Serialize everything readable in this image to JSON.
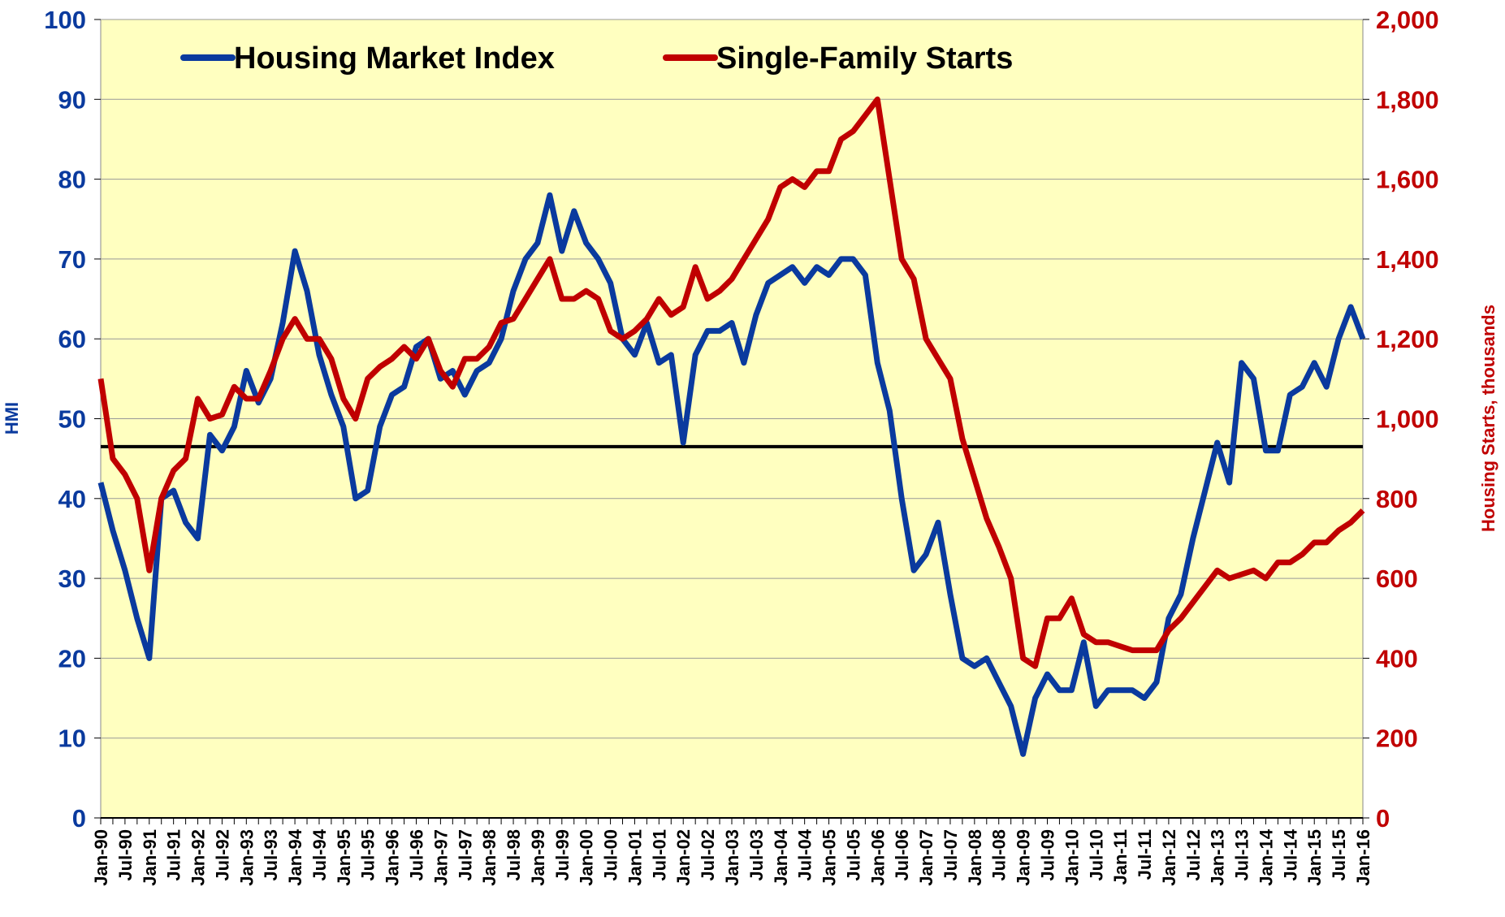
{
  "chart_data": {
    "type": "line",
    "y_label": "HMI",
    "y2_label": "Housing Starts, thousands",
    "categories": [
      "Jan-90",
      null,
      "Jul-90",
      null,
      "Jan-91",
      null,
      "Jul-91",
      null,
      "Jan-92",
      null,
      "Jul-92",
      null,
      "Jan-93",
      null,
      "Jul-93",
      null,
      "Jan-94",
      null,
      "Jul-94",
      null,
      "Jan-95",
      null,
      "Jul-95",
      null,
      "Jan-96",
      null,
      "Jul-96",
      null,
      "Jan-97",
      null,
      "Jul-97",
      null,
      "Jan-98",
      null,
      "Jul-98",
      null,
      "Jan-99",
      null,
      "Jul-99",
      null,
      "Jan-00",
      null,
      "Jul-00",
      null,
      "Jan-01",
      null,
      "Jul-01",
      null,
      "Jan-02",
      null,
      "Jul-02",
      null,
      "Jan-03",
      null,
      "Jul-03",
      null,
      "Jan-04",
      null,
      "Jul-04",
      null,
      "Jan-05",
      null,
      "Jul-05",
      null,
      "Jan-06",
      null,
      "Jul-06",
      null,
      "Jan-07",
      null,
      "Jul-07",
      null,
      "Jan-08",
      null,
      "Jul-08",
      null,
      "Jan-09",
      null,
      "Jul-09",
      null,
      "Jan-10",
      null,
      "Jul-10",
      null,
      "Jan-11",
      null,
      "Jul-11",
      null,
      "Jan-12",
      null,
      "Jul-12",
      null,
      "Jan-13",
      null,
      "Jul-13",
      null,
      "Jan-14",
      null,
      "Jul-14",
      null,
      "Jan-15",
      null,
      "Jul-15",
      null,
      "Jan-16"
    ],
    "series": [
      {
        "name": "Housing Market Index",
        "color": "#0a3a9e",
        "values": [
          42,
          36,
          31,
          25,
          20,
          40,
          41,
          37,
          35,
          48,
          46,
          49,
          56,
          52,
          55,
          62,
          71,
          66,
          58,
          53,
          49,
          40,
          41,
          49,
          53,
          54,
          59,
          60,
          55,
          56,
          53,
          56,
          57,
          60,
          66,
          70,
          72,
          78,
          71,
          76,
          72,
          70,
          67,
          60,
          58,
          62,
          57,
          58,
          47,
          58,
          61,
          61,
          62,
          57,
          63,
          67,
          68,
          69,
          67,
          69,
          68,
          70,
          70,
          68,
          57,
          51,
          40,
          31,
          33,
          37,
          28,
          20,
          19,
          20,
          17,
          14,
          8,
          15,
          18,
          16,
          16,
          22,
          14,
          16,
          16,
          16,
          15,
          17,
          25,
          28,
          35,
          41,
          47,
          42,
          57,
          55,
          46,
          46,
          53,
          54,
          57,
          54,
          60,
          64,
          60
        ]
      },
      {
        "name": "Single-Family Starts",
        "color": "#c00000",
        "axis": "y2",
        "values": [
          1100,
          900,
          860,
          800,
          620,
          800,
          870,
          900,
          1050,
          1000,
          1010,
          1080,
          1050,
          1050,
          1120,
          1200,
          1250,
          1200,
          1200,
          1150,
          1050,
          1000,
          1100,
          1130,
          1150,
          1180,
          1150,
          1200,
          1120,
          1080,
          1150,
          1150,
          1180,
          1240,
          1250,
          1300,
          1350,
          1400,
          1300,
          1300,
          1320,
          1300,
          1220,
          1200,
          1220,
          1250,
          1300,
          1260,
          1280,
          1380,
          1300,
          1320,
          1350,
          1400,
          1450,
          1500,
          1580,
          1600,
          1580,
          1620,
          1620,
          1700,
          1720,
          1760,
          1800,
          1600,
          1400,
          1350,
          1200,
          1150,
          1100,
          950,
          850,
          750,
          680,
          600,
          400,
          380,
          500,
          500,
          550,
          460,
          440,
          440,
          430,
          420,
          420,
          420,
          470,
          500,
          540,
          580,
          620,
          600,
          610,
          620,
          600,
          640,
          640,
          660,
          690,
          690,
          720,
          740,
          770
        ]
      }
    ],
    "hline": 46.5,
    "ylim": [
      0,
      100
    ],
    "yticks": [
      0,
      10,
      20,
      30,
      40,
      50,
      60,
      70,
      80,
      90,
      100
    ],
    "y2lim": [
      0,
      2000
    ],
    "y2ticks": [
      0,
      200,
      400,
      600,
      800,
      {
        "value": 1000,
        "label": "1,000"
      },
      {
        "value": 1200,
        "label": "1,200"
      },
      {
        "value": 1400,
        "label": "1,400"
      },
      {
        "value": 1600,
        "label": "1,600"
      },
      {
        "value": 1800,
        "label": "1,800"
      },
      {
        "value": 2000,
        "label": "2,000"
      }
    ],
    "grid": true,
    "plot_background": "#ffffc0"
  }
}
